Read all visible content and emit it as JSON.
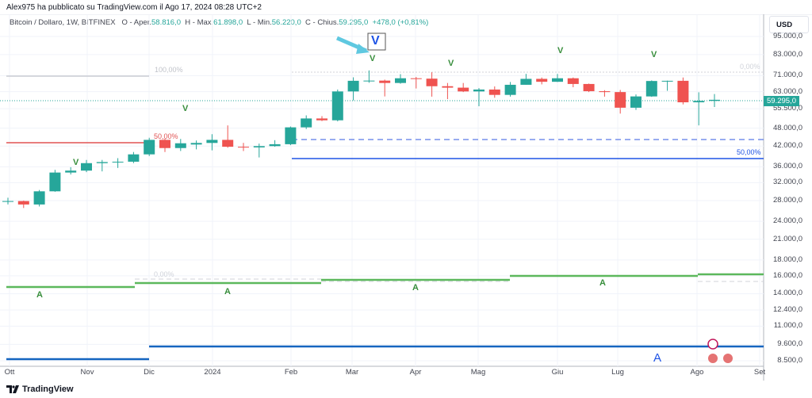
{
  "header": {
    "published": "Alex975 ha pubblicato su TradingView.com il Ago 17, 2024 08:28 UTC+2"
  },
  "legend": {
    "symbol": "Bitcoin / Dollaro, 1W, BITFINEX",
    "o_label": "O - Aper.",
    "o": "58.816,0",
    "h_label": "H - Max.",
    "h": "61.898,0",
    "l_label": "L - Min.",
    "l": "56.220,0",
    "c_label": "C - Chius.",
    "c": "59.295,0",
    "change": "+478,0 (+0,81%)"
  },
  "price_axis": {
    "currency": "USD",
    "last_price": "59.295,0",
    "ticks": [
      "95.000,0",
      "83.000,0",
      "71.000,0",
      "63.000,0",
      "55.500,0",
      "48.000,0",
      "42.000,0",
      "36.000,0",
      "32.000,0",
      "28.000,0",
      "24.000,0",
      "21.000,0",
      "18.000,0",
      "16.000,0",
      "14.000,0",
      "12.400,0",
      "11.000,0",
      "9.600,0",
      "8.500,0"
    ]
  },
  "time_axis": [
    "Ott",
    "Nov",
    "Dic",
    "2024",
    "Feb",
    "Mar",
    "Apr",
    "Mag",
    "Giu",
    "Lug",
    "Ago",
    "Set"
  ],
  "annotations": {
    "fib_100": "100,00%",
    "fib_50_red": "50,00%",
    "fib_0_top": "0,00%",
    "fib_50_blue": "50,00%",
    "fib_0_bottom": "0,00%",
    "v": "V",
    "a": "A",
    "boxed_v": "V",
    "big_a": "A"
  },
  "colors": {
    "up": "#26a69a",
    "down": "#ef5350",
    "green": "#4caf50",
    "blue": "#1e53e5",
    "steel": "#1565c0"
  },
  "chart_data": {
    "type": "candlestick",
    "scale": "log",
    "ylim": [
      8500,
      95000
    ],
    "candles": [
      [
        27900,
        28600,
        27200,
        27900
      ],
      [
        27900,
        28000,
        26500,
        27200
      ],
      [
        27200,
        30300,
        26800,
        30000
      ],
      [
        30000,
        35200,
        29900,
        34500
      ],
      [
        34500,
        35900,
        34000,
        35000
      ],
      [
        35000,
        37900,
        34600,
        37000
      ],
      [
        37000,
        37900,
        34800,
        37300
      ],
      [
        37300,
        38400,
        35700,
        37400
      ],
      [
        37400,
        40200,
        37000,
        39500
      ],
      [
        39500,
        44700,
        39000,
        44000
      ],
      [
        44000,
        44400,
        40200,
        41400
      ],
      [
        41400,
        44300,
        40500,
        42900
      ],
      [
        42500,
        43800,
        41000,
        43000
      ],
      [
        43000,
        45900,
        40700,
        44000
      ],
      [
        44000,
        49000,
        41500,
        41800
      ],
      [
        41800,
        43000,
        40500,
        41600
      ],
      [
        41600,
        42800,
        38600,
        42000
      ],
      [
        42000,
        43900,
        41800,
        42600
      ],
      [
        42600,
        48600,
        42300,
        48300
      ],
      [
        48300,
        52800,
        47700,
        51600
      ],
      [
        51600,
        52500,
        50600,
        50900
      ],
      [
        50900,
        64000,
        50500,
        63100
      ],
      [
        63100,
        70100,
        59000,
        68300
      ],
      [
        68300,
        73800,
        67300,
        68400
      ],
      [
        68400,
        68900,
        60800,
        67200
      ],
      [
        67200,
        71800,
        66800,
        69600
      ],
      [
        69600,
        70300,
        64500,
        69400
      ],
      [
        69400,
        72800,
        60700,
        65600
      ],
      [
        65600,
        67200,
        59600,
        64900
      ],
      [
        64900,
        67200,
        62800,
        63100
      ],
      [
        63100,
        64700,
        56500,
        64000
      ],
      [
        64000,
        65500,
        60200,
        61500
      ],
      [
        61500,
        67700,
        60700,
        66300
      ],
      [
        66300,
        71900,
        66300,
        69300
      ],
      [
        69300,
        70000,
        66500,
        67800
      ],
      [
        67800,
        71900,
        67700,
        69600
      ],
      [
        69600,
        70000,
        65100,
        66700
      ],
      [
        66700,
        66900,
        62800,
        63200
      ],
      [
        63200,
        63700,
        60700,
        62800
      ],
      [
        62800,
        63800,
        53500,
        55900
      ],
      [
        55900,
        61700,
        55000,
        60800
      ],
      [
        60800,
        68500,
        60600,
        68200
      ],
      [
        68200,
        68400,
        63400,
        68300
      ],
      [
        68300,
        70000,
        57300,
        58200
      ],
      [
        58200,
        62700,
        49000,
        58800
      ],
      [
        58800,
        61900,
        56200,
        59295
      ]
    ]
  }
}
